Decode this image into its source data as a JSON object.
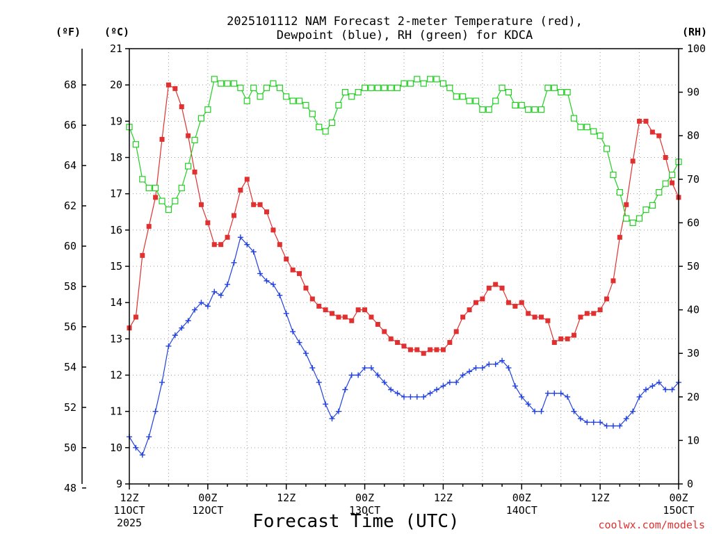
{
  "chart_data": {
    "type": "line",
    "title_lines": [
      "2025101112 NAM Forecast 2-meter Temperature (red),",
      "Dewpoint (blue), RH (green) for KDCA"
    ],
    "xlabel": "Forecast Time (UTC)",
    "credit": "coolwx.com/models",
    "units": {
      "f": "(ºF)",
      "c": "(ºC)",
      "rh": "(RH)"
    },
    "x_ticks": [
      {
        "hour": 0,
        "lines": [
          "12Z",
          "11OCT",
          "2025"
        ]
      },
      {
        "hour": 12,
        "lines": [
          "00Z",
          "12OCT"
        ]
      },
      {
        "hour": 24,
        "lines": [
          "12Z"
        ]
      },
      {
        "hour": 36,
        "lines": [
          "00Z",
          "13OCT"
        ]
      },
      {
        "hour": 48,
        "lines": [
          "12Z"
        ]
      },
      {
        "hour": 60,
        "lines": [
          "00Z",
          "14OCT"
        ]
      },
      {
        "hour": 72,
        "lines": [
          "12Z"
        ]
      },
      {
        "hour": 84,
        "lines": [
          "00Z",
          "15OCT"
        ]
      }
    ],
    "x_step_hours": 1,
    "xlim": [
      0,
      84
    ],
    "ylim_c": [
      9,
      21
    ],
    "ylim_rh": [
      0,
      100
    ],
    "y_ticks_c": [
      9,
      10,
      11,
      12,
      13,
      14,
      15,
      16,
      17,
      18,
      19,
      20,
      21
    ],
    "y_ticks_f": [
      48,
      50,
      52,
      54,
      56,
      58,
      60,
      62,
      64,
      66,
      68
    ],
    "y_ticks_rh": [
      0,
      10,
      20,
      30,
      40,
      50,
      60,
      70,
      80,
      90,
      100
    ],
    "series": [
      {
        "color": "#e03030",
        "marker": "filled-square",
        "axis": "c",
        "values": [
          13.3,
          13.6,
          15.3,
          16.1,
          16.9,
          18.5,
          20.0,
          19.9,
          19.4,
          18.6,
          17.6,
          16.7,
          16.2,
          15.6,
          15.6,
          15.8,
          16.4,
          17.1,
          17.4,
          16.7,
          16.7,
          16.5,
          16.0,
          15.6,
          15.2,
          14.9,
          14.8,
          14.4,
          14.1,
          13.9,
          13.8,
          13.7,
          13.6,
          13.6,
          13.5,
          13.8,
          13.8,
          13.6,
          13.4,
          13.2,
          13.0,
          12.9,
          12.8,
          12.7,
          12.7,
          12.6,
          12.7,
          12.7,
          12.7,
          12.9,
          13.2,
          13.6,
          13.8,
          14.0,
          14.1,
          14.4,
          14.5,
          14.4,
          14.0,
          13.9,
          14.0,
          13.7,
          13.6,
          13.6,
          13.5,
          12.9,
          13.0,
          13.0,
          13.1,
          13.6,
          13.7,
          13.7,
          13.8,
          14.1,
          14.6,
          15.8,
          16.7,
          17.9,
          19.0,
          19.0,
          18.7,
          18.6,
          18.0,
          17.3,
          16.9
        ]
      },
      {
        "color": "#2040e0",
        "marker": "plus",
        "axis": "c",
        "values": [
          10.3,
          10.0,
          9.8,
          10.3,
          11.0,
          11.8,
          12.8,
          13.1,
          13.3,
          13.5,
          13.8,
          14.0,
          13.9,
          14.3,
          14.2,
          14.5,
          15.1,
          15.8,
          15.6,
          15.4,
          14.8,
          14.6,
          14.5,
          14.2,
          13.7,
          13.2,
          12.9,
          12.6,
          12.2,
          11.8,
          11.2,
          10.8,
          11.0,
          11.6,
          12.0,
          12.0,
          12.2,
          12.2,
          12.0,
          11.8,
          11.6,
          11.5,
          11.4,
          11.4,
          11.4,
          11.4,
          11.5,
          11.6,
          11.7,
          11.8,
          11.8,
          12.0,
          12.1,
          12.2,
          12.2,
          12.3,
          12.3,
          12.4,
          12.2,
          11.7,
          11.4,
          11.2,
          11.0,
          11.0,
          11.5,
          11.5,
          11.5,
          11.4,
          11.0,
          10.8,
          10.7,
          10.7,
          10.7,
          10.6,
          10.6,
          10.6,
          10.8,
          11.0,
          11.4,
          11.6,
          11.7,
          11.8,
          11.6,
          11.6,
          11.8
        ]
      },
      {
        "color": "#20d020",
        "marker": "open-square",
        "axis": "rh",
        "values": [
          82,
          78,
          70,
          68,
          68,
          65,
          63,
          65,
          68,
          73,
          79,
          84,
          86,
          93,
          92,
          92,
          92,
          91,
          88,
          91,
          89,
          91,
          92,
          91,
          89,
          88,
          88,
          87,
          85,
          82,
          81,
          83,
          87,
          90,
          89,
          90,
          91,
          91,
          91,
          91,
          91,
          91,
          92,
          92,
          93,
          92,
          93,
          93,
          92,
          91,
          89,
          89,
          88,
          88,
          86,
          86,
          88,
          91,
          90,
          87,
          87,
          86,
          86,
          86,
          91,
          91,
          90,
          90,
          84,
          82,
          82,
          81,
          80,
          77,
          71,
          67,
          61,
          60,
          61,
          63,
          64,
          67,
          69,
          71,
          74
        ]
      }
    ]
  }
}
